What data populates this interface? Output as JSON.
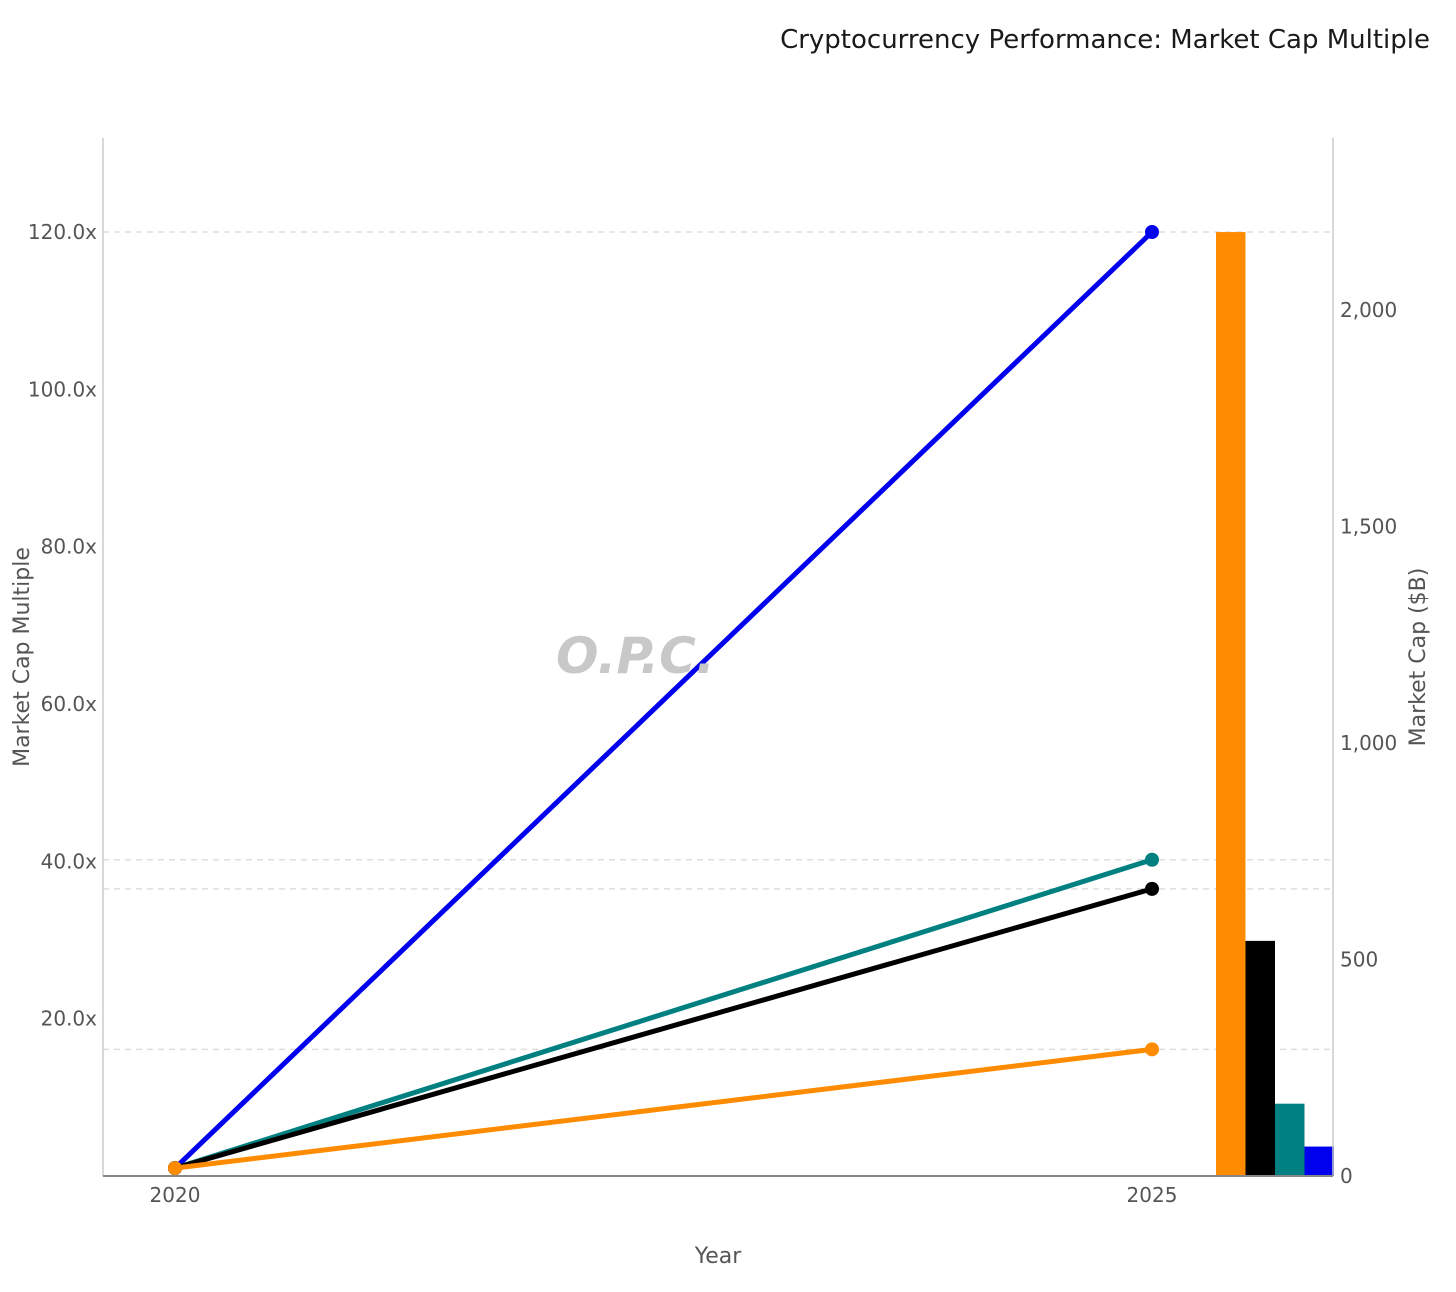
{
  "chart_data": {
    "type": "line",
    "title": "Cryptocurrency Performance: Market Cap Multiple",
    "xlabel": "Year",
    "ylabel": "Market Cap Multiple",
    "y2label": "Market Cap ($B)",
    "x": [
      2020,
      2025
    ],
    "x_ticks": [
      "2020",
      "2025"
    ],
    "ylim": [
      0,
      132
    ],
    "y_ticks": [
      20,
      40,
      60,
      80,
      100,
      120
    ],
    "y_tick_labels": [
      "20.0x",
      "40.0x",
      "60.0x",
      "80.0x",
      "100.0x",
      "120.0x"
    ],
    "y2lim": [
      0,
      2400
    ],
    "y2_ticks": [
      0,
      500,
      1000,
      1500,
      2000
    ],
    "y2_tick_labels": [
      "0",
      "500",
      "1,000",
      "1,500",
      "2,000"
    ],
    "reference_lines": [
      120,
      40.2,
      36.5,
      16.1
    ],
    "series": [
      {
        "color": "#0000ee",
        "values": [
          1,
          120
        ]
      },
      {
        "color": "#008080",
        "values": [
          1,
          40.2
        ]
      },
      {
        "color": "#000000",
        "values": [
          1,
          36.5
        ]
      },
      {
        "color": "#ff8c00",
        "values": [
          1,
          16.1
        ]
      }
    ],
    "bars": [
      {
        "color": "#ff8c00",
        "value": 2180
      },
      {
        "color": "#000000",
        "value": 543
      },
      {
        "color": "#008080",
        "value": 167
      },
      {
        "color": "#0000ee",
        "value": 68
      }
    ],
    "grid": "horizontal dashed at reference values",
    "legend": "none"
  },
  "watermark": "O.P.C."
}
